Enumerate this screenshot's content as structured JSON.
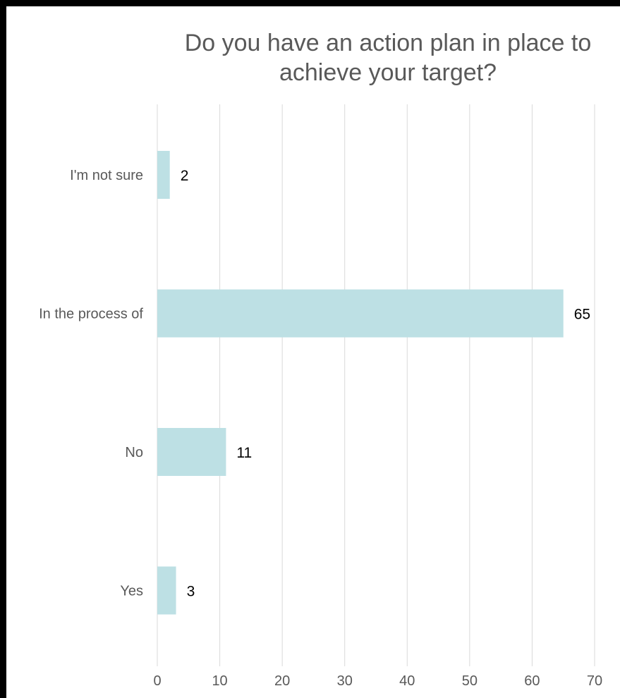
{
  "chart_data": {
    "type": "bar",
    "orientation": "horizontal",
    "title_lines": [
      "Do you have an action plan in place to",
      "achieve your target?"
    ],
    "categories": [
      "I'm not sure",
      "In the process of",
      "No",
      "Yes"
    ],
    "values": [
      2,
      65,
      11,
      3
    ],
    "data_labels": [
      "2",
      "65",
      "11",
      "3"
    ],
    "xticks": [
      "0",
      "10",
      "20",
      "30",
      "40",
      "50",
      "60",
      "70"
    ],
    "xlim": [
      0,
      70
    ],
    "xlabel": "",
    "ylabel": "",
    "grid": true,
    "legend": "none",
    "bar_color": "#bde0e4",
    "grid_color": "#d9d9d9"
  }
}
